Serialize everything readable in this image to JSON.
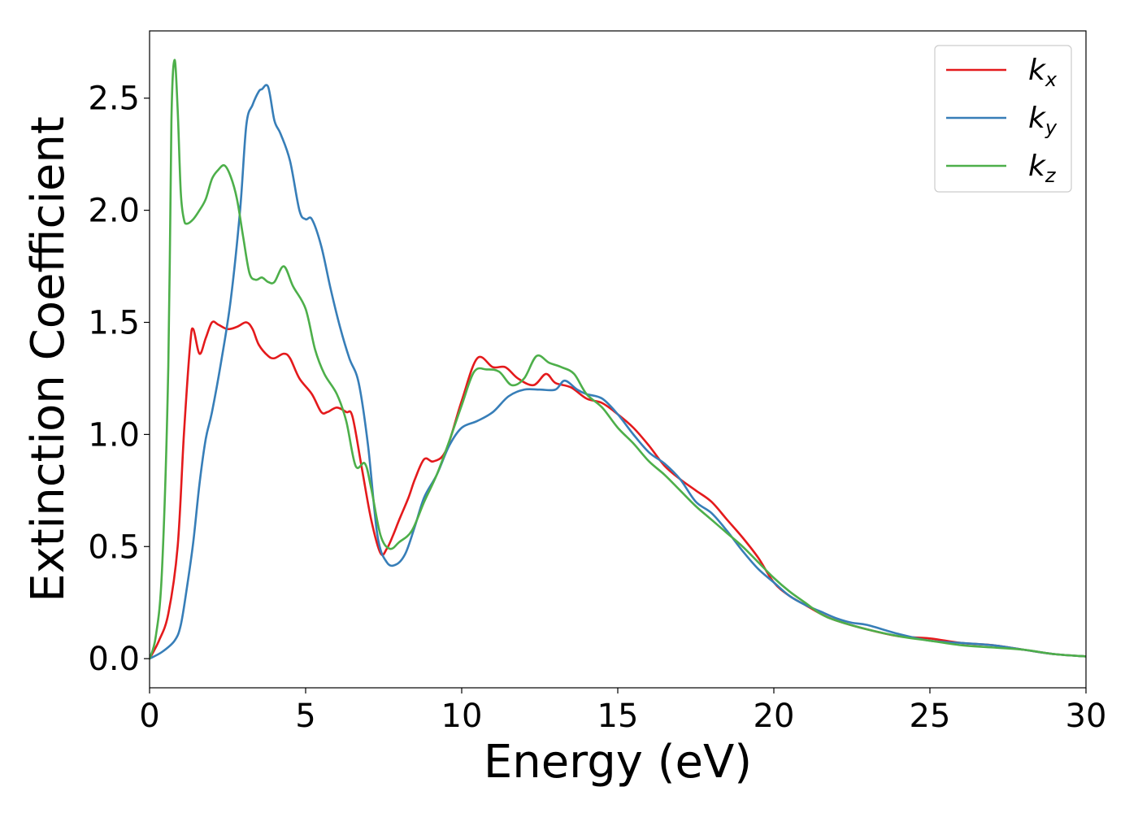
{
  "chart_data": {
    "type": "line",
    "xlabel": "Energy (eV)",
    "ylabel": "Extinction Coefficient",
    "xlim": [
      0,
      30
    ],
    "ylim": [
      -0.13,
      2.8
    ],
    "xticks": [
      0,
      5,
      10,
      15,
      20,
      25,
      30
    ],
    "xtick_labels": [
      "0",
      "5",
      "10",
      "15",
      "20",
      "25",
      "30"
    ],
    "yticks": [
      0.0,
      0.5,
      1.0,
      1.5,
      2.0,
      2.5
    ],
    "ytick_labels": [
      "0.0",
      "0.5",
      "1.0",
      "1.5",
      "2.0",
      "2.5"
    ],
    "grid": false,
    "legend_position": "top-right",
    "series": [
      {
        "name": "k",
        "subscript": "x",
        "color": "#e41a1c",
        "x": [
          0,
          0.3,
          0.6,
          0.9,
          1.1,
          1.3,
          1.4,
          1.6,
          1.8,
          2.0,
          2.2,
          2.5,
          2.8,
          3.1,
          3.3,
          3.5,
          3.8,
          4.0,
          4.3,
          4.5,
          4.8,
          5.2,
          5.5,
          5.7,
          6.0,
          6.3,
          6.5,
          6.8,
          7.1,
          7.4,
          7.6,
          7.8,
          8.0,
          8.3,
          8.5,
          8.8,
          9.1,
          9.5,
          10.0,
          10.5,
          11.0,
          11.4,
          11.8,
          12.3,
          12.7,
          13.0,
          13.5,
          14.0,
          14.5,
          15.0,
          15.5,
          16.0,
          16.5,
          17.0,
          17.5,
          18.0,
          18.5,
          19.0,
          19.5,
          20.0,
          20.5,
          21.0,
          21.5,
          22.0,
          23.0,
          24.0,
          25.0,
          26.0,
          27.0,
          28.0,
          29.0,
          30.0
        ],
        "y": [
          0.0,
          0.08,
          0.2,
          0.5,
          1.0,
          1.4,
          1.47,
          1.36,
          1.43,
          1.5,
          1.49,
          1.47,
          1.48,
          1.5,
          1.47,
          1.4,
          1.35,
          1.34,
          1.36,
          1.34,
          1.25,
          1.18,
          1.1,
          1.1,
          1.12,
          1.1,
          1.08,
          0.85,
          0.62,
          0.47,
          0.49,
          0.55,
          0.62,
          0.72,
          0.8,
          0.89,
          0.88,
          0.93,
          1.15,
          1.34,
          1.3,
          1.3,
          1.25,
          1.22,
          1.27,
          1.23,
          1.21,
          1.16,
          1.14,
          1.09,
          1.03,
          0.95,
          0.86,
          0.8,
          0.75,
          0.7,
          0.62,
          0.54,
          0.45,
          0.34,
          0.28,
          0.24,
          0.2,
          0.17,
          0.13,
          0.1,
          0.09,
          0.07,
          0.06,
          0.04,
          0.02,
          0.01
        ]
      },
      {
        "name": "k",
        "subscript": "y",
        "color": "#377eb8",
        "x": [
          0,
          0.4,
          0.8,
          1.0,
          1.2,
          1.4,
          1.6,
          1.8,
          2.0,
          2.3,
          2.6,
          2.9,
          3.1,
          3.3,
          3.5,
          3.6,
          3.8,
          4.0,
          4.2,
          4.5,
          4.8,
          5.0,
          5.2,
          5.5,
          5.8,
          6.1,
          6.4,
          6.7,
          7.0,
          7.3,
          7.6,
          7.9,
          8.2,
          8.5,
          8.8,
          9.2,
          9.6,
          10.0,
          10.5,
          11.0,
          11.5,
          12.0,
          12.5,
          13.0,
          13.3,
          13.7,
          14.0,
          14.5,
          15.0,
          15.5,
          16.0,
          16.5,
          17.0,
          17.5,
          18.0,
          18.5,
          19.0,
          19.5,
          20.0,
          20.5,
          21.0,
          21.5,
          22.0,
          22.5,
          23.0,
          24.0,
          25.0,
          26.0,
          27.0,
          28.0,
          29.0,
          30.0
        ],
        "y": [
          0.0,
          0.03,
          0.08,
          0.15,
          0.32,
          0.52,
          0.78,
          0.98,
          1.1,
          1.33,
          1.6,
          2.0,
          2.38,
          2.47,
          2.53,
          2.54,
          2.55,
          2.4,
          2.34,
          2.22,
          2.0,
          1.96,
          1.96,
          1.84,
          1.65,
          1.48,
          1.34,
          1.23,
          0.95,
          0.55,
          0.43,
          0.42,
          0.47,
          0.59,
          0.72,
          0.82,
          0.95,
          1.03,
          1.06,
          1.1,
          1.17,
          1.2,
          1.2,
          1.2,
          1.24,
          1.2,
          1.18,
          1.16,
          1.09,
          1.0,
          0.92,
          0.87,
          0.8,
          0.7,
          0.65,
          0.57,
          0.48,
          0.4,
          0.34,
          0.28,
          0.24,
          0.21,
          0.18,
          0.16,
          0.15,
          0.11,
          0.08,
          0.07,
          0.06,
          0.04,
          0.02,
          0.01
        ]
      },
      {
        "name": "k",
        "subscript": "z",
        "color": "#4daf4a",
        "x": [
          0,
          0.2,
          0.4,
          0.6,
          0.7,
          0.8,
          0.9,
          1.0,
          1.1,
          1.2,
          1.4,
          1.6,
          1.8,
          2.0,
          2.2,
          2.4,
          2.6,
          2.8,
          3.0,
          3.2,
          3.4,
          3.6,
          3.8,
          4.0,
          4.3,
          4.6,
          5.0,
          5.3,
          5.6,
          6.0,
          6.3,
          6.6,
          6.9,
          7.1,
          7.4,
          7.7,
          8.0,
          8.4,
          8.8,
          9.2,
          9.6,
          10.0,
          10.4,
          10.8,
          11.2,
          11.6,
          12.0,
          12.4,
          12.8,
          13.2,
          13.6,
          14.0,
          14.5,
          15.0,
          15.5,
          16.0,
          16.5,
          17.0,
          17.5,
          18.0,
          18.5,
          19.0,
          19.5,
          20.0,
          20.5,
          21.0,
          21.5,
          22.0,
          23.0,
          24.0,
          25.0,
          26.0,
          27.0,
          28.0,
          29.0,
          30.0
        ],
        "y": [
          0.0,
          0.1,
          0.4,
          1.3,
          2.4,
          2.67,
          2.45,
          2.08,
          1.96,
          1.94,
          1.96,
          2.0,
          2.05,
          2.14,
          2.18,
          2.2,
          2.15,
          2.05,
          1.88,
          1.72,
          1.69,
          1.7,
          1.68,
          1.68,
          1.75,
          1.66,
          1.56,
          1.38,
          1.27,
          1.18,
          1.06,
          0.86,
          0.87,
          0.76,
          0.55,
          0.49,
          0.52,
          0.57,
          0.7,
          0.82,
          0.97,
          1.13,
          1.28,
          1.29,
          1.28,
          1.22,
          1.25,
          1.35,
          1.32,
          1.3,
          1.27,
          1.18,
          1.12,
          1.03,
          0.96,
          0.88,
          0.82,
          0.75,
          0.68,
          0.62,
          0.56,
          0.5,
          0.43,
          0.36,
          0.3,
          0.25,
          0.2,
          0.17,
          0.13,
          0.1,
          0.08,
          0.06,
          0.05,
          0.04,
          0.02,
          0.01
        ]
      }
    ]
  }
}
